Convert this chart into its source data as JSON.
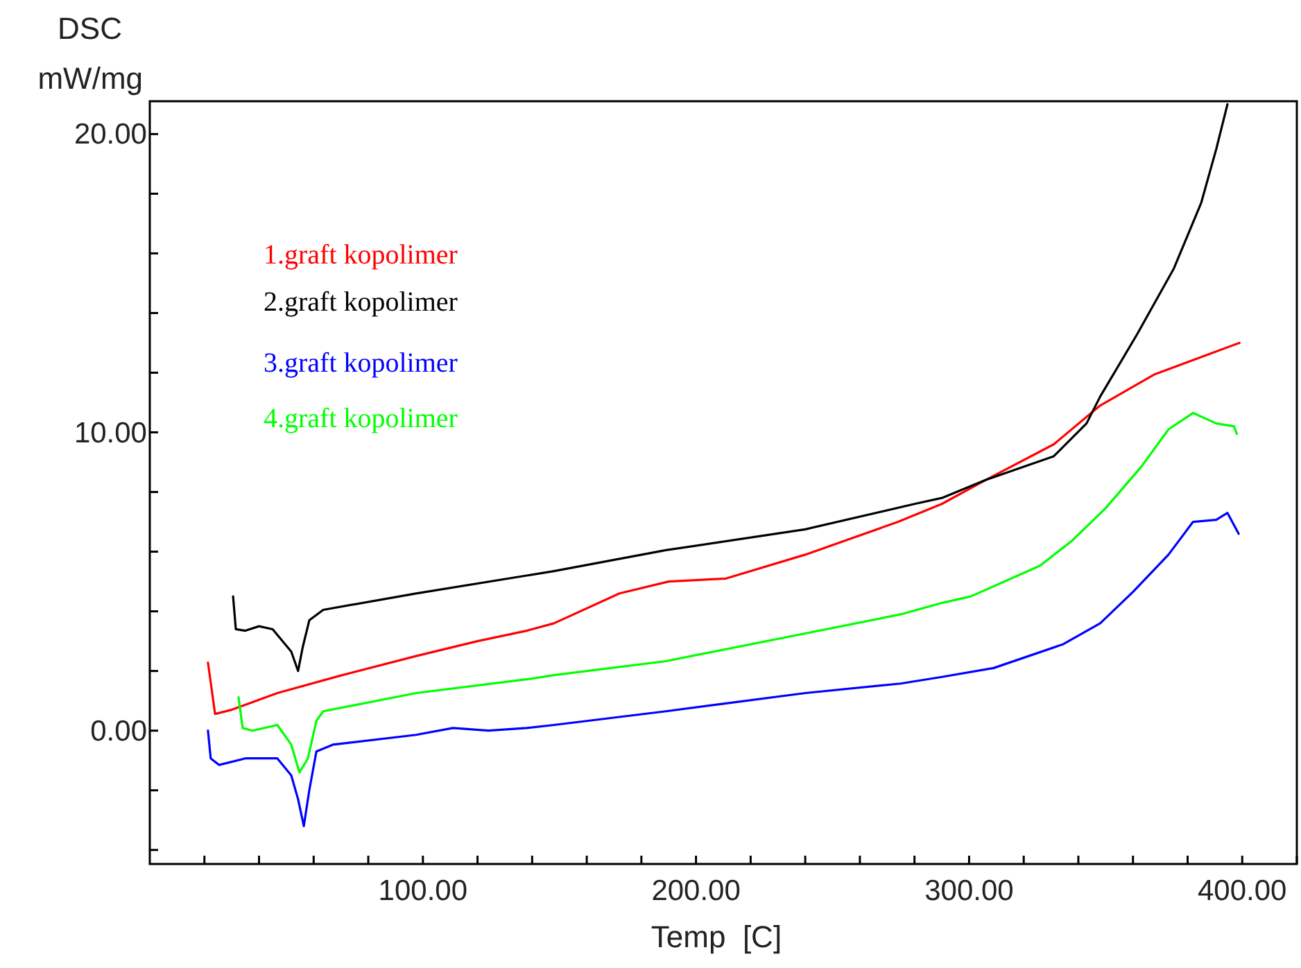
{
  "chart_data": {
    "type": "line",
    "xlabel": "Temp  [C]",
    "ylabel": "DSC\nmW/mg",
    "xlim": [
      0,
      420
    ],
    "ylim": [
      -4.47,
      21.1
    ],
    "xticks": [
      {
        "value": 20,
        "label": null
      },
      {
        "value": 40,
        "label": null
      },
      {
        "value": 60,
        "label": null
      },
      {
        "value": 80,
        "label": null
      },
      {
        "value": 100,
        "label": "100.00"
      },
      {
        "value": 120,
        "label": null
      },
      {
        "value": 140,
        "label": null
      },
      {
        "value": 160,
        "label": null
      },
      {
        "value": 180,
        "label": null
      },
      {
        "value": 200,
        "label": "200.00"
      },
      {
        "value": 220,
        "label": null
      },
      {
        "value": 240,
        "label": null
      },
      {
        "value": 260,
        "label": null
      },
      {
        "value": 280,
        "label": null
      },
      {
        "value": 300,
        "label": "300.00"
      },
      {
        "value": 320,
        "label": null
      },
      {
        "value": 340,
        "label": null
      },
      {
        "value": 360,
        "label": null
      },
      {
        "value": 380,
        "label": null
      },
      {
        "value": 400,
        "label": "400.00"
      },
      {
        "value": 420,
        "label": null
      }
    ],
    "yticks": [
      {
        "value": -4,
        "label": null
      },
      {
        "value": -2,
        "label": null
      },
      {
        "value": 0,
        "label": "0.00"
      },
      {
        "value": 2,
        "label": null
      },
      {
        "value": 4,
        "label": null
      },
      {
        "value": 6,
        "label": null
      },
      {
        "value": 8,
        "label": null
      },
      {
        "value": 10,
        "label": "10.00"
      },
      {
        "value": 12,
        "label": null
      },
      {
        "value": 14,
        "label": null
      },
      {
        "value": 16,
        "label": null
      },
      {
        "value": 18,
        "label": null
      },
      {
        "value": 20,
        "label": "20.00"
      }
    ],
    "grid": false,
    "legend": "top left",
    "marker": "none",
    "line_style": "solid",
    "series": [
      {
        "name": "1.graft kopolimer",
        "color": "#ff0000",
        "x": [
          21.3,
          23.9,
          30,
          46.7,
          70,
          97.5,
          120,
          138,
          148,
          172,
          190,
          211,
          240,
          274,
          290,
          306,
          331,
          348,
          368,
          399
        ],
        "values": [
          2.28,
          0.56,
          0.7,
          1.26,
          1.85,
          2.5,
          3.0,
          3.35,
          3.6,
          4.6,
          5.0,
          5.1,
          5.9,
          7.0,
          7.6,
          8.4,
          9.6,
          10.9,
          11.95,
          13.0
        ]
      },
      {
        "name": "2.graft kopolimer",
        "color": "#000000",
        "x": [
          30.5,
          31.5,
          35,
          40,
          45,
          51.8,
          54.3,
          56,
          58.4,
          63.5,
          97.5,
          138,
          148,
          189,
          240,
          280,
          290,
          306,
          331,
          343,
          348,
          361.6,
          375,
          385,
          390.5,
          394.6
        ],
        "values": [
          4.5,
          3.4,
          3.35,
          3.5,
          3.4,
          2.65,
          2.0,
          2.8,
          3.7,
          4.05,
          4.6,
          5.2,
          5.35,
          6.05,
          6.75,
          7.6,
          7.8,
          8.4,
          9.2,
          10.3,
          11.2,
          13.3,
          15.5,
          17.7,
          19.5,
          21.0
        ]
      },
      {
        "name": "3.graft kopolimer",
        "color": "#0000ff",
        "x": [
          21.3,
          22.3,
          25.4,
          35,
          46.7,
          51.8,
          54.3,
          56.4,
          58.4,
          61,
          67,
          97.5,
          111,
          124,
          138,
          148,
          189,
          240,
          275,
          290,
          309,
          334.5,
          348,
          360,
          373,
          382,
          390.5,
          394.6,
          398.7
        ],
        "values": [
          0,
          -0.93,
          -1.15,
          -0.93,
          -0.93,
          -1.5,
          -2.3,
          -3.2,
          -2.0,
          -0.7,
          -0.47,
          -0.14,
          0.09,
          0,
          0.09,
          0.19,
          0.65,
          1.26,
          1.58,
          1.8,
          2.1,
          2.9,
          3.6,
          4.65,
          5.9,
          7.0,
          7.07,
          7.3,
          6.6
        ]
      },
      {
        "name": "4.graft kopolimer",
        "color": "#00ff00",
        "x": [
          32.5,
          34,
          37.6,
          46.7,
          51.8,
          54.8,
          57.9,
          61,
          63.5,
          97.5,
          138,
          148,
          189,
          240,
          275,
          290,
          300.6,
          326,
          337.7,
          349.8,
          363,
          373,
          382,
          390.5,
          397,
          398
        ],
        "values": [
          1.12,
          0.09,
          0,
          0.19,
          -0.47,
          -1.4,
          -0.93,
          0.33,
          0.65,
          1.26,
          1.72,
          1.86,
          2.33,
          3.26,
          3.9,
          4.28,
          4.5,
          5.53,
          6.37,
          7.44,
          8.84,
          10.1,
          10.65,
          10.3,
          10.2,
          9.95
        ]
      }
    ]
  }
}
